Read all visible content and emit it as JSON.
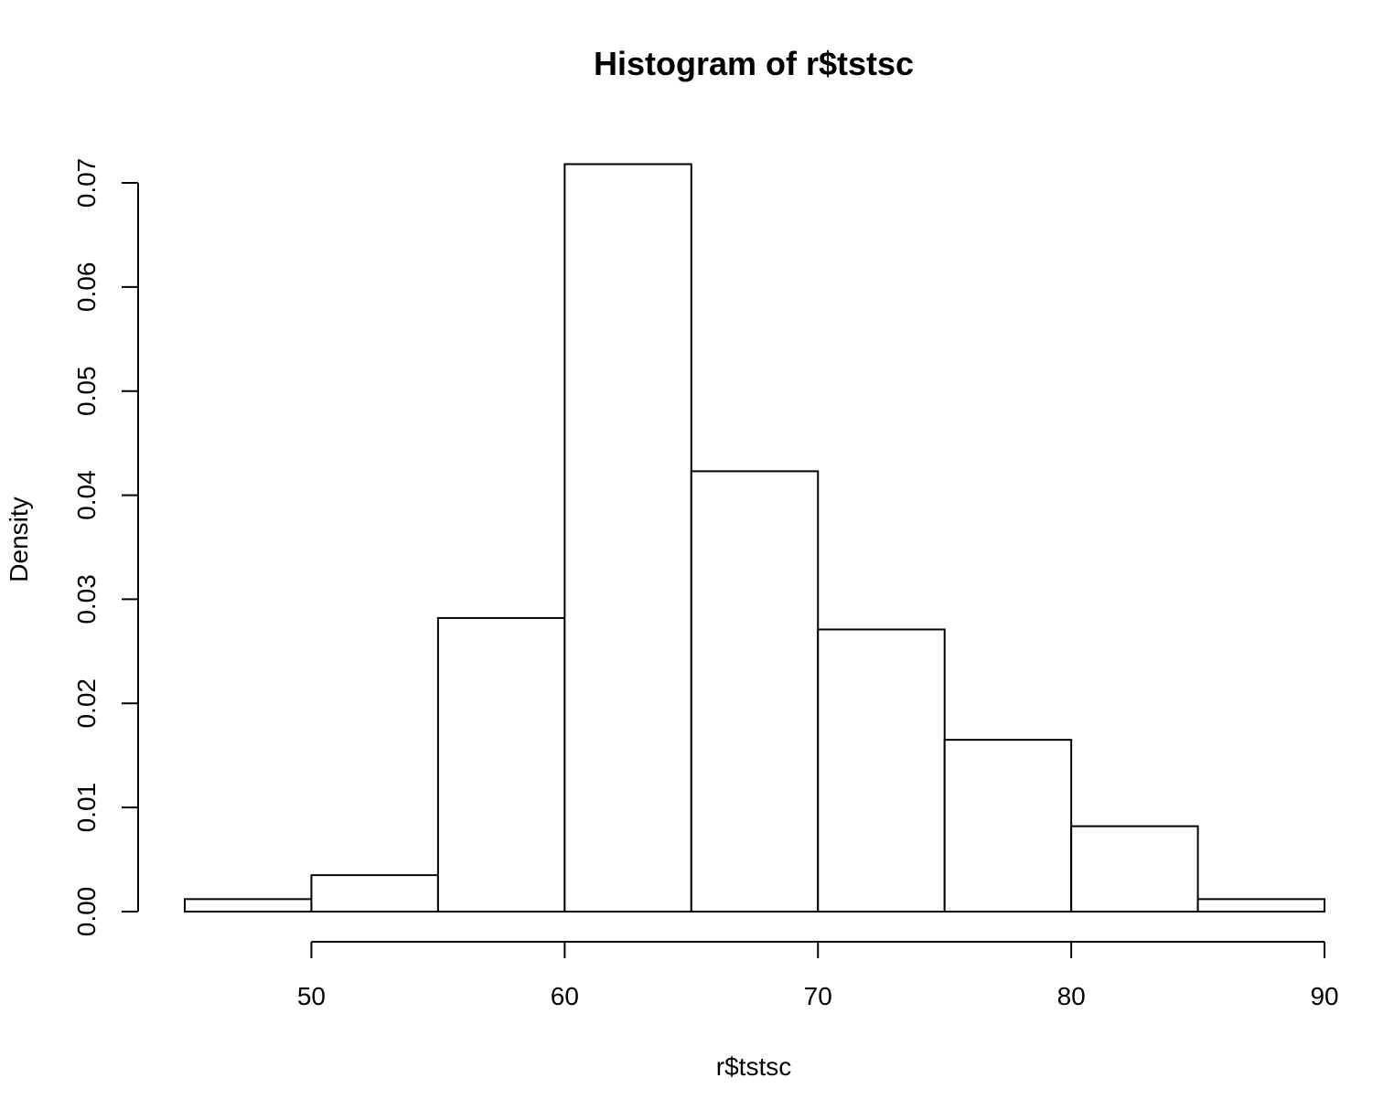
{
  "chart_data": {
    "type": "bar",
    "title": "Histogram of r$tstsc",
    "xlabel": "r$tstsc",
    "ylabel": "Density",
    "bins": [
      {
        "from": 45,
        "to": 50,
        "density": 0.0012
      },
      {
        "from": 50,
        "to": 55,
        "density": 0.0035
      },
      {
        "from": 55,
        "to": 60,
        "density": 0.0282
      },
      {
        "from": 60,
        "to": 65,
        "density": 0.0718
      },
      {
        "from": 65,
        "to": 70,
        "density": 0.0423
      },
      {
        "from": 70,
        "to": 75,
        "density": 0.0271
      },
      {
        "from": 75,
        "to": 80,
        "density": 0.0165
      },
      {
        "from": 80,
        "to": 85,
        "density": 0.0082
      },
      {
        "from": 85,
        "to": 90,
        "density": 0.0012
      }
    ],
    "x_ticks": [
      50,
      60,
      70,
      80,
      90
    ],
    "y_ticks": [
      "0.00",
      "0.01",
      "0.02",
      "0.03",
      "0.04",
      "0.05",
      "0.06",
      "0.07"
    ],
    "xlim": [
      45,
      90
    ],
    "ylim": [
      0,
      0.07
    ],
    "grid": false,
    "legend": "none"
  }
}
